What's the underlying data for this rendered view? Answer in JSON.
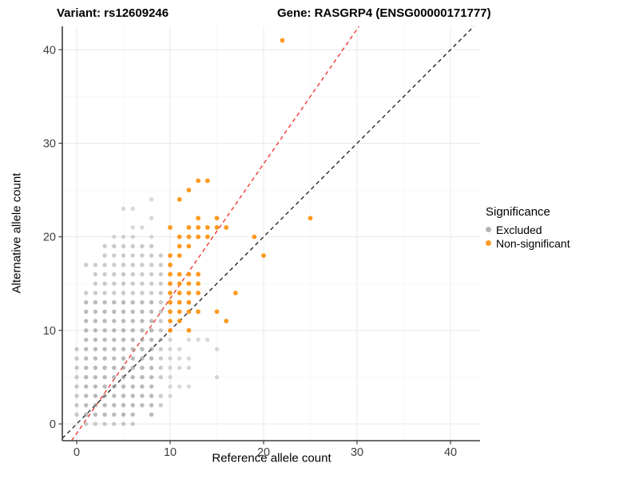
{
  "chart_data": {
    "type": "scatter",
    "titles": {
      "variant": "Variant: rs12609246",
      "gene": "Gene: RASGRP4 (ENSG00000171777)"
    },
    "xlabel": "Reference allele count",
    "ylabel": "Alternative allele count",
    "xlim": [
      -1.54,
      43.16
    ],
    "ylim": [
      -1.79,
      42.5
    ],
    "x_ticks": [
      0,
      10,
      20,
      30,
      40
    ],
    "y_ticks": [
      0,
      10,
      20,
      30,
      40
    ],
    "x_minor": [
      5,
      15,
      25,
      35
    ],
    "y_minor": [
      5,
      15,
      25,
      35
    ],
    "grid": {
      "major_color": "#e9e9e9",
      "minor_color": "#f4f4f4",
      "background": "#ffffff"
    },
    "axis": {
      "line_color": "#3c3c3c",
      "tick_color": "#3c3c3c",
      "tick_label_color": "#404040"
    },
    "legend": {
      "title": "Significance",
      "position": "right",
      "items": [
        {
          "label": "Excluded",
          "color": "#b5b5b5"
        },
        {
          "label": "Non-significant",
          "color": "#fb9c26"
        }
      ]
    },
    "series": [
      {
        "name": "Excluded",
        "color": "#8c8c8c",
        "radius": 2.7,
        "points": [
          [
            1,
            0
          ],
          [
            2,
            0
          ],
          [
            3,
            0
          ],
          [
            4,
            0
          ],
          [
            5,
            0
          ],
          [
            6,
            0
          ],
          [
            0,
            1
          ],
          [
            1,
            1
          ],
          [
            2,
            1
          ],
          [
            3,
            1
          ],
          [
            4,
            1
          ],
          [
            5,
            1
          ],
          [
            6,
            1
          ],
          [
            8,
            1
          ],
          [
            0,
            2
          ],
          [
            1,
            2
          ],
          [
            2,
            2
          ],
          [
            3,
            2
          ],
          [
            4,
            2
          ],
          [
            5,
            2
          ],
          [
            6,
            2
          ],
          [
            7,
            2
          ],
          [
            8,
            2
          ],
          [
            9,
            2
          ],
          [
            0,
            3
          ],
          [
            1,
            3
          ],
          [
            2,
            3
          ],
          [
            3,
            3
          ],
          [
            4,
            3
          ],
          [
            5,
            3
          ],
          [
            6,
            3
          ],
          [
            7,
            3
          ],
          [
            8,
            3
          ],
          [
            9,
            3
          ],
          [
            10,
            3
          ],
          [
            0,
            4
          ],
          [
            1,
            4
          ],
          [
            2,
            4
          ],
          [
            3,
            4
          ],
          [
            4,
            4
          ],
          [
            5,
            4
          ],
          [
            6,
            4
          ],
          [
            7,
            4
          ],
          [
            8,
            4
          ],
          [
            10,
            4
          ],
          [
            11,
            4
          ],
          [
            12,
            4
          ],
          [
            0,
            5
          ],
          [
            1,
            5
          ],
          [
            2,
            5
          ],
          [
            3,
            5
          ],
          [
            4,
            5
          ],
          [
            5,
            5
          ],
          [
            6,
            5
          ],
          [
            7,
            5
          ],
          [
            8,
            5
          ],
          [
            9,
            5
          ],
          [
            10,
            5
          ],
          [
            15,
            5
          ],
          [
            0,
            6
          ],
          [
            1,
            6
          ],
          [
            2,
            6
          ],
          [
            3,
            6
          ],
          [
            4,
            6
          ],
          [
            5,
            6
          ],
          [
            6,
            6
          ],
          [
            7,
            6
          ],
          [
            8,
            6
          ],
          [
            9,
            6
          ],
          [
            10,
            6
          ],
          [
            11,
            6
          ],
          [
            12,
            6
          ],
          [
            0,
            7
          ],
          [
            1,
            7
          ],
          [
            2,
            7
          ],
          [
            3,
            7
          ],
          [
            4,
            7
          ],
          [
            5,
            7
          ],
          [
            6,
            7
          ],
          [
            7,
            7
          ],
          [
            8,
            7
          ],
          [
            9,
            7
          ],
          [
            10,
            7
          ],
          [
            11,
            7
          ],
          [
            12,
            7
          ],
          [
            0,
            8
          ],
          [
            1,
            8
          ],
          [
            2,
            8
          ],
          [
            3,
            8
          ],
          [
            4,
            8
          ],
          [
            5,
            8
          ],
          [
            6,
            8
          ],
          [
            7,
            8
          ],
          [
            8,
            8
          ],
          [
            9,
            8
          ],
          [
            10,
            8
          ],
          [
            11,
            8
          ],
          [
            15,
            8
          ],
          [
            1,
            9
          ],
          [
            2,
            9
          ],
          [
            3,
            9
          ],
          [
            4,
            9
          ],
          [
            5,
            9
          ],
          [
            6,
            9
          ],
          [
            7,
            9
          ],
          [
            8,
            9
          ],
          [
            9,
            9
          ],
          [
            10,
            9
          ],
          [
            12,
            9
          ],
          [
            13,
            9
          ],
          [
            14,
            9
          ],
          [
            1,
            10
          ],
          [
            2,
            10
          ],
          [
            3,
            10
          ],
          [
            4,
            10
          ],
          [
            5,
            10
          ],
          [
            6,
            10
          ],
          [
            7,
            10
          ],
          [
            8,
            10
          ],
          [
            9,
            10
          ],
          [
            1,
            11
          ],
          [
            2,
            11
          ],
          [
            3,
            11
          ],
          [
            4,
            11
          ],
          [
            5,
            11
          ],
          [
            6,
            11
          ],
          [
            7,
            11
          ],
          [
            8,
            11
          ],
          [
            9,
            11
          ],
          [
            1,
            12
          ],
          [
            2,
            12
          ],
          [
            3,
            12
          ],
          [
            4,
            12
          ],
          [
            5,
            12
          ],
          [
            6,
            12
          ],
          [
            7,
            12
          ],
          [
            8,
            12
          ],
          [
            9,
            12
          ],
          [
            1,
            13
          ],
          [
            2,
            13
          ],
          [
            3,
            13
          ],
          [
            4,
            13
          ],
          [
            5,
            13
          ],
          [
            6,
            13
          ],
          [
            7,
            13
          ],
          [
            8,
            13
          ],
          [
            9,
            13
          ],
          [
            1,
            14
          ],
          [
            2,
            14
          ],
          [
            3,
            14
          ],
          [
            4,
            14
          ],
          [
            5,
            14
          ],
          [
            6,
            14
          ],
          [
            7,
            14
          ],
          [
            8,
            14
          ],
          [
            9,
            14
          ],
          [
            2,
            15
          ],
          [
            3,
            15
          ],
          [
            4,
            15
          ],
          [
            5,
            15
          ],
          [
            6,
            15
          ],
          [
            7,
            15
          ],
          [
            8,
            15
          ],
          [
            9,
            15
          ],
          [
            2,
            16
          ],
          [
            3,
            16
          ],
          [
            4,
            16
          ],
          [
            5,
            16
          ],
          [
            6,
            16
          ],
          [
            7,
            16
          ],
          [
            8,
            16
          ],
          [
            9,
            16
          ],
          [
            1,
            17
          ],
          [
            2,
            17
          ],
          [
            3,
            17
          ],
          [
            4,
            17
          ],
          [
            5,
            17
          ],
          [
            6,
            17
          ],
          [
            7,
            17
          ],
          [
            8,
            17
          ],
          [
            9,
            17
          ],
          [
            3,
            18
          ],
          [
            4,
            18
          ],
          [
            5,
            18
          ],
          [
            6,
            18
          ],
          [
            7,
            18
          ],
          [
            8,
            18
          ],
          [
            9,
            18
          ],
          [
            3,
            19
          ],
          [
            4,
            19
          ],
          [
            5,
            19
          ],
          [
            6,
            19
          ],
          [
            7,
            19
          ],
          [
            8,
            19
          ],
          [
            4,
            20
          ],
          [
            5,
            20
          ],
          [
            6,
            20
          ],
          [
            8,
            20
          ],
          [
            6,
            21
          ],
          [
            7,
            21
          ],
          [
            8,
            22
          ],
          [
            5,
            23
          ],
          [
            6,
            23
          ],
          [
            8,
            24
          ]
        ]
      },
      {
        "name": "Non-significant",
        "color": "#fb8c00",
        "radius": 2.9,
        "points": [
          [
            10,
            10
          ],
          [
            12,
            10
          ],
          [
            10,
            11
          ],
          [
            11,
            11
          ],
          [
            16,
            11
          ],
          [
            10,
            12
          ],
          [
            11,
            12
          ],
          [
            12,
            12
          ],
          [
            13,
            12
          ],
          [
            15,
            12
          ],
          [
            10,
            13
          ],
          [
            11,
            13
          ],
          [
            12,
            13
          ],
          [
            10,
            14
          ],
          [
            11,
            14
          ],
          [
            12,
            14
          ],
          [
            13,
            14
          ],
          [
            17,
            14
          ],
          [
            10,
            15
          ],
          [
            11,
            15
          ],
          [
            12,
            15
          ],
          [
            13,
            15
          ],
          [
            10,
            16
          ],
          [
            11,
            16
          ],
          [
            12,
            16
          ],
          [
            13,
            16
          ],
          [
            10,
            17
          ],
          [
            10,
            18
          ],
          [
            11,
            18
          ],
          [
            20,
            18
          ],
          [
            11,
            19
          ],
          [
            12,
            19
          ],
          [
            11,
            20
          ],
          [
            12,
            20
          ],
          [
            13,
            20
          ],
          [
            14,
            20
          ],
          [
            19,
            20
          ],
          [
            10,
            21
          ],
          [
            12,
            21
          ],
          [
            13,
            21
          ],
          [
            14,
            21
          ],
          [
            15,
            21
          ],
          [
            16,
            21
          ],
          [
            13,
            22
          ],
          [
            15,
            22
          ],
          [
            25,
            22
          ],
          [
            11,
            24
          ],
          [
            12,
            25
          ],
          [
            13,
            26
          ],
          [
            14,
            26
          ],
          [
            22,
            41
          ]
        ]
      }
    ],
    "ref_lines": [
      {
        "name": "expected-ratio-line",
        "color": "#ef2e23",
        "slope": 1.44,
        "intercept": -1.0,
        "dash": "5,4",
        "width": 1.3
      },
      {
        "name": "identity-line",
        "color": "#1a1a1a",
        "slope": 1.0,
        "intercept": 0.0,
        "dash": "5,4",
        "width": 1.3
      }
    ]
  }
}
